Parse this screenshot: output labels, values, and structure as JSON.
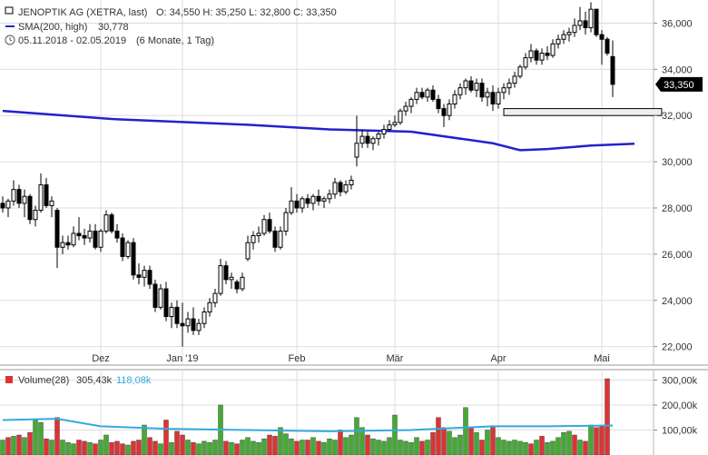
{
  "header": {
    "instrument": "JENOPTIK AG (XETRA, last)",
    "ohlc": "O: 34,550  H: 35,250  L: 32,800  C: 33,350",
    "sma_label": "SMA(200, high)",
    "sma_value": "30,778",
    "range": "05.11.2018 - 02.05.2019",
    "period": "(6 Monate, 1 Tag)"
  },
  "volume_header": {
    "label": "Volume(28)",
    "value": "305,43k",
    "avg": "118,08k"
  },
  "last_price_label": "33,350",
  "colors": {
    "candle": "#000000",
    "sma": "#2222cc",
    "vol_up": "#44aa33",
    "vol_down": "#dd3333",
    "vol_avg": "#33aadd",
    "grid": "#dddddd",
    "price_tag": "#000000"
  },
  "icons": {
    "clock": "clock-icon"
  },
  "chart_data": [
    {
      "type": "candlestick",
      "title": "JENOPTIK AG (XETRA, last)",
      "ylabel": "",
      "ylim": [
        21200,
        37000
      ],
      "yticks": [
        {
          "v": 22000,
          "label": "22,000"
        },
        {
          "v": 24000,
          "label": "24,000"
        },
        {
          "v": 26000,
          "label": "26,000"
        },
        {
          "v": 28000,
          "label": "28,000"
        },
        {
          "v": 30000,
          "label": "30,000"
        },
        {
          "v": 32000,
          "label": "32,000"
        },
        {
          "v": 34000,
          "label": "34,000"
        },
        {
          "v": 36000,
          "label": "36,000"
        }
      ],
      "xticks": [
        {
          "i": 18,
          "label": "Dez"
        },
        {
          "i": 33,
          "label": "Jan '19"
        },
        {
          "i": 54,
          "label": "Feb"
        },
        {
          "i": 72,
          "label": "Mär"
        },
        {
          "i": 91,
          "label": "Apr"
        },
        {
          "i": 110,
          "label": "Mai"
        }
      ],
      "candles": [
        [
          28200,
          28500,
          27800,
          28000
        ],
        [
          28000,
          28400,
          27600,
          28300
        ],
        [
          28300,
          29200,
          28100,
          28800
        ],
        [
          28800,
          29000,
          28000,
          28200
        ],
        [
          28200,
          28800,
          27600,
          28500
        ],
        [
          28500,
          28600,
          27300,
          27500
        ],
        [
          27500,
          28100,
          27200,
          27900
        ],
        [
          27900,
          29500,
          27800,
          29000
        ],
        [
          29000,
          29300,
          28000,
          28100
        ],
        [
          28100,
          28500,
          27600,
          28300
        ],
        [
          27900,
          28000,
          25400,
          26300
        ],
        [
          26300,
          26800,
          26000,
          26500
        ],
        [
          26500,
          26800,
          26200,
          26400
        ],
        [
          26400,
          27200,
          26300,
          26900
        ],
        [
          26900,
          27600,
          26600,
          26800
        ],
        [
          26800,
          27100,
          26400,
          26700
        ],
        [
          26700,
          27300,
          26500,
          27000
        ],
        [
          27000,
          27300,
          26200,
          26300
        ],
        [
          26300,
          27100,
          26100,
          27000
        ],
        [
          27000,
          27900,
          26900,
          27700
        ],
        [
          27700,
          27800,
          26900,
          27000
        ],
        [
          27000,
          27300,
          26500,
          26700
        ],
        [
          26700,
          26900,
          25700,
          25900
        ],
        [
          25900,
          26600,
          25800,
          26500
        ],
        [
          26500,
          26700,
          24900,
          25100
        ],
        [
          25100,
          25600,
          24700,
          25000
        ],
        [
          25000,
          25500,
          24600,
          25300
        ],
        [
          25300,
          25500,
          24500,
          24700
        ],
        [
          24700,
          24900,
          23500,
          23700
        ],
        [
          23700,
          24700,
          23600,
          24500
        ],
        [
          24500,
          24800,
          23100,
          23300
        ],
        [
          23300,
          23900,
          22800,
          23700
        ],
        [
          23700,
          24000,
          22800,
          23000
        ],
        [
          23000,
          23900,
          22000,
          22900
        ],
        [
          22900,
          23500,
          22600,
          23200
        ],
        [
          23200,
          23700,
          22500,
          22700
        ],
        [
          22700,
          23200,
          22500,
          23000
        ],
        [
          23000,
          23700,
          22800,
          23500
        ],
        [
          23500,
          24100,
          23300,
          23900
        ],
        [
          23900,
          24500,
          23700,
          24300
        ],
        [
          24300,
          25800,
          24200,
          25500
        ],
        [
          25500,
          25700,
          24700,
          24900
        ],
        [
          24900,
          25200,
          24500,
          25000
        ],
        [
          24800,
          24900,
          24300,
          24500
        ],
        [
          24500,
          25200,
          24400,
          25000
        ],
        [
          25800,
          26800,
          25700,
          26500
        ],
        [
          26500,
          27000,
          26200,
          26800
        ],
        [
          26800,
          27200,
          26500,
          26900
        ],
        [
          26900,
          27700,
          26800,
          27500
        ],
        [
          27500,
          27800,
          26900,
          27000
        ],
        [
          27000,
          27200,
          26100,
          26300
        ],
        [
          26300,
          27200,
          26200,
          27000
        ],
        [
          27000,
          28000,
          26800,
          27800
        ],
        [
          27800,
          28900,
          27700,
          28300
        ],
        [
          28300,
          28600,
          27800,
          28000
        ],
        [
          28000,
          28500,
          27800,
          28400
        ],
        [
          28400,
          28600,
          28000,
          28200
        ],
        [
          28200,
          28600,
          27900,
          28500
        ],
        [
          28500,
          28800,
          28100,
          28300
        ],
        [
          28300,
          28500,
          28000,
          28400
        ],
        [
          28400,
          28800,
          28200,
          28600
        ],
        [
          28600,
          29300,
          28400,
          29100
        ],
        [
          29100,
          29200,
          28500,
          28700
        ],
        [
          28700,
          29200,
          28600,
          29000
        ],
        [
          29000,
          29400,
          28800,
          29200
        ],
        [
          30200,
          32000,
          29800,
          30800
        ],
        [
          30800,
          31400,
          30600,
          31100
        ],
        [
          31100,
          31300,
          30600,
          30800
        ],
        [
          30800,
          31100,
          30500,
          31000
        ],
        [
          31000,
          31300,
          30700,
          31200
        ],
        [
          31200,
          31600,
          31000,
          31400
        ],
        [
          31400,
          31800,
          31300,
          31600
        ],
        [
          31600,
          32000,
          31500,
          31700
        ],
        [
          31700,
          32300,
          31600,
          32200
        ],
        [
          32200,
          32600,
          32000,
          32400
        ],
        [
          32400,
          32800,
          32100,
          32700
        ],
        [
          32700,
          33200,
          32500,
          33000
        ],
        [
          33000,
          33200,
          32700,
          32800
        ],
        [
          32800,
          33200,
          32600,
          33100
        ],
        [
          33100,
          33300,
          32600,
          32700
        ],
        [
          32700,
          32900,
          32100,
          32300
        ],
        [
          32300,
          32500,
          31500,
          32000
        ],
        [
          32000,
          32700,
          31800,
          32500
        ],
        [
          32500,
          33100,
          32300,
          32900
        ],
        [
          32900,
          33400,
          32700,
          33200
        ],
        [
          33200,
          33600,
          32900,
          33500
        ],
        [
          33500,
          33700,
          33000,
          33100
        ],
        [
          33100,
          33600,
          32800,
          33400
        ],
        [
          33400,
          33600,
          32600,
          32800
        ],
        [
          32800,
          33200,
          32400,
          33000
        ],
        [
          33000,
          33300,
          32200,
          32500
        ],
        [
          32500,
          33200,
          32300,
          33000
        ],
        [
          33000,
          33400,
          32700,
          33200
        ],
        [
          33200,
          33600,
          32900,
          33400
        ],
        [
          33400,
          33900,
          33200,
          33700
        ],
        [
          33700,
          34200,
          33600,
          34100
        ],
        [
          34100,
          34700,
          34000,
          34500
        ],
        [
          34500,
          35100,
          34300,
          34800
        ],
        [
          34800,
          34900,
          34200,
          34400
        ],
        [
          34400,
          34900,
          34200,
          34700
        ],
        [
          34700,
          35000,
          34400,
          34600
        ],
        [
          34600,
          35300,
          34500,
          35100
        ],
        [
          35100,
          35500,
          34900,
          35300
        ],
        [
          35300,
          35700,
          35100,
          35500
        ],
        [
          35500,
          35800,
          35200,
          35600
        ],
        [
          35600,
          36200,
          35400,
          35900
        ],
        [
          35900,
          36700,
          35700,
          36100
        ],
        [
          36100,
          36500,
          35500,
          35800
        ],
        [
          35800,
          36900,
          35600,
          36600
        ],
        [
          36600,
          36600,
          35400,
          35500
        ],
        [
          35500,
          35700,
          34200,
          35300
        ],
        [
          35300,
          35400,
          34600,
          34700
        ],
        [
          34550,
          35250,
          32800,
          33350
        ]
      ],
      "support_band": {
        "from_i": 92,
        "to_i": 121,
        "low": 32000,
        "high": 32300
      },
      "sma": {
        "name": "SMA(200, high)",
        "points": [
          [
            0,
            32200
          ],
          [
            20,
            31850
          ],
          [
            45,
            31600
          ],
          [
            60,
            31400
          ],
          [
            75,
            31300
          ],
          [
            90,
            30800
          ],
          [
            95,
            30500
          ],
          [
            100,
            30550
          ],
          [
            108,
            30700
          ],
          [
            116,
            30778
          ]
        ]
      },
      "last_price": 33350
    },
    {
      "type": "bar",
      "title": "Volume(28)",
      "ylim": [
        0,
        320000
      ],
      "yticks": [
        {
          "v": 100000,
          "label": "100,00k"
        },
        {
          "v": 200000,
          "label": "200,00k"
        },
        {
          "v": 300000,
          "label": "300,00k"
        }
      ],
      "values": [
        60000,
        70000,
        75000,
        80000,
        70000,
        90000,
        140000,
        130000,
        65000,
        60000,
        150000,
        60000,
        50000,
        45000,
        60000,
        55000,
        50000,
        45000,
        60000,
        80000,
        50000,
        55000,
        45000,
        40000,
        55000,
        60000,
        120000,
        70000,
        55000,
        45000,
        140000,
        50000,
        95000,
        80000,
        60000,
        50000,
        45000,
        55000,
        50000,
        60000,
        200000,
        55000,
        50000,
        45000,
        60000,
        70000,
        55000,
        50000,
        65000,
        80000,
        75000,
        110000,
        85000,
        65000,
        55000,
        60000,
        60000,
        70000,
        55000,
        50000,
        65000,
        60000,
        100000,
        70000,
        80000,
        150000,
        110000,
        80000,
        65000,
        60000,
        55000,
        70000,
        160000,
        60000,
        55000,
        50000,
        70000,
        55000,
        60000,
        90000,
        150000,
        110000,
        95000,
        70000,
        80000,
        190000,
        110000,
        90000,
        60000,
        100000,
        110000,
        70000,
        60000,
        55000,
        60000,
        55000,
        50000,
        45000,
        60000,
        75000,
        50000,
        55000,
        70000,
        90000,
        95000,
        80000,
        60000,
        55000,
        120000,
        110000,
        115000,
        305430
      ],
      "up": [
        true,
        false,
        true,
        false,
        true,
        false,
        true,
        true,
        false,
        true,
        false,
        true,
        true,
        true,
        false,
        false,
        true,
        false,
        true,
        true,
        false,
        false,
        false,
        true,
        false,
        false,
        true,
        false,
        false,
        true,
        false,
        true,
        false,
        false,
        true,
        false,
        true,
        true,
        true,
        true,
        true,
        false,
        true,
        false,
        true,
        true,
        true,
        true,
        true,
        false,
        false,
        true,
        true,
        true,
        false,
        true,
        false,
        true,
        false,
        true,
        true,
        true,
        false,
        true,
        true,
        true,
        true,
        false,
        true,
        true,
        true,
        true,
        true,
        true,
        true,
        true,
        true,
        false,
        true,
        false,
        false,
        false,
        true,
        true,
        true,
        true,
        false,
        true,
        false,
        true,
        false,
        true,
        true,
        true,
        true,
        true,
        true,
        false,
        true,
        false,
        true,
        true,
        true,
        true,
        true,
        false,
        true,
        false,
        true,
        false,
        false,
        false
      ],
      "avg_series": {
        "name": "Volume(28) avg",
        "points": [
          [
            0,
            140000
          ],
          [
            10,
            145000
          ],
          [
            18,
            115000
          ],
          [
            30,
            105000
          ],
          [
            45,
            100000
          ],
          [
            60,
            95000
          ],
          [
            75,
            100000
          ],
          [
            90,
            115000
          ],
          [
            100,
            115000
          ],
          [
            112,
            118080
          ]
        ]
      }
    }
  ]
}
